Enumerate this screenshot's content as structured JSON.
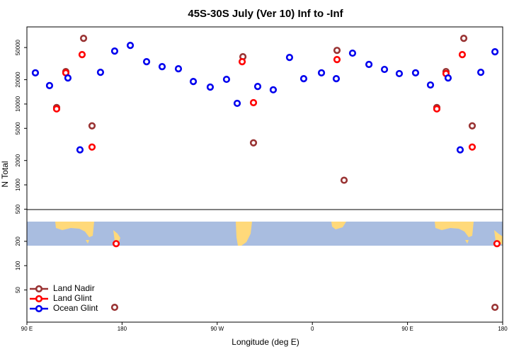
{
  "chart_data": {
    "type": "scatter",
    "title": "45S-30S July (Ver 10)   Inf to -Inf",
    "x_label": "Longitude (deg E)",
    "y_label": "N Total",
    "log_y": true,
    "xlim": [
      90,
      540
    ],
    "xticks": [
      {
        "value": 90,
        "label": "90 E"
      },
      {
        "value": 180,
        "label": "180"
      },
      {
        "value": 270,
        "label": "90 W"
      },
      {
        "value": 360,
        "label": "0"
      },
      {
        "value": 450,
        "label": "90 E"
      },
      {
        "value": 540,
        "label": "180"
      }
    ],
    "ylim": [
      20,
      90000
    ],
    "yticks": [
      50,
      100,
      200,
      500,
      1000,
      2000,
      5000,
      10000,
      20000,
      50000
    ],
    "legend": "lower left",
    "series": [
      {
        "name": "Land Nadir",
        "color": "#993333",
        "x": [
          118.1,
          126.8,
          143.6,
          151.6,
          173,
          294.3,
          304.3,
          383.3,
          390,
          477.7,
          486.4,
          503.2,
          511.2,
          532.7
        ],
        "values": [
          9050,
          25200,
          65000,
          5370,
          30.5,
          38500,
          3310,
          46100,
          1140,
          9050,
          25200,
          65000,
          5370,
          30.5
        ]
      },
      {
        "name": "Land Glint",
        "color": "#ff0000",
        "x": [
          118.1,
          126.8,
          142.2,
          151.6,
          174.4,
          293.6,
          304.3,
          383.3,
          477.7,
          486.4,
          501.8,
          511.2,
          534.6
        ],
        "values": [
          8700,
          24300,
          40900,
          2935,
          187,
          33400,
          10400,
          35500,
          8700,
          23800,
          40900,
          2935,
          187
        ]
      },
      {
        "name": "Ocean Glint",
        "color": "#0000ee",
        "x": [
          98,
          111.4,
          128.8,
          140.2,
          159.6,
          173,
          187.8,
          203.2,
          217.9,
          233.3,
          247.4,
          263.4,
          278.8,
          288.9,
          308.3,
          323,
          338.4,
          351.8,
          368.6,
          382.6,
          398,
          413.5,
          428.2,
          442.2,
          457.6,
          471.7,
          488.4,
          499.8,
          519.3,
          532.7
        ],
        "values": [
          24300,
          16900,
          21000,
          2710,
          24700,
          45200,
          53100,
          33400,
          29000,
          27300,
          19000,
          16200,
          20200,
          10200,
          16500,
          15000,
          37700,
          20600,
          24300,
          20600,
          42600,
          30900,
          26800,
          23800,
          24300,
          17200,
          21000,
          2710,
          24700,
          44300
        ]
      }
    ]
  }
}
